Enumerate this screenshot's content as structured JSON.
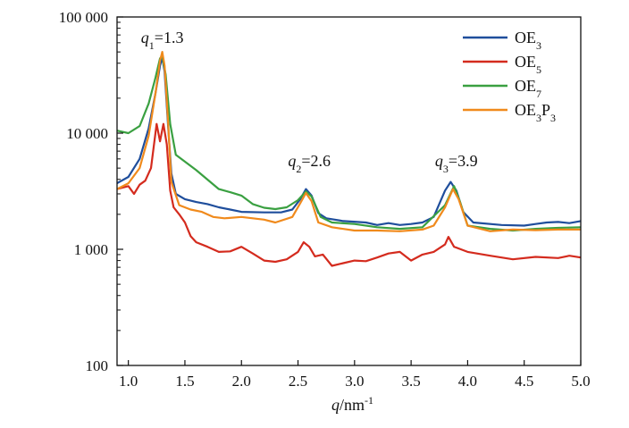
{
  "chart_data": {
    "type": "line",
    "xlabel": {
      "var": "q",
      "unit": "/nm",
      "exp": "-1"
    },
    "ylabel": "",
    "y_scale": "log",
    "xlim": [
      0.9,
      5.0
    ],
    "ylim": [
      100,
      100000
    ],
    "x_ticks": [
      1.0,
      1.5,
      2.0,
      2.5,
      3.0,
      3.5,
      4.0,
      4.5,
      5.0
    ],
    "x_tick_labels": [
      "1.0",
      "1.5",
      "2.0",
      "2.5",
      "3.0",
      "3.5",
      "4.0",
      "4.5",
      "5.0"
    ],
    "y_ticks": [
      100,
      1000,
      10000,
      100000
    ],
    "y_tick_labels": [
      "100",
      "1 000",
      "10 000",
      "100 000"
    ],
    "grid": false,
    "legend_position": "top-right",
    "annotations": [
      {
        "sym": "q",
        "sub": "1",
        "text": "=1.3",
        "x": 1.3,
        "y": 60000
      },
      {
        "sym": "q",
        "sub": "2",
        "text": "=2.6",
        "x": 2.6,
        "y": 5200
      },
      {
        "sym": "q",
        "sub": "3",
        "text": "=3.9",
        "x": 3.9,
        "y": 5200
      }
    ],
    "series": [
      {
        "name": "OE3",
        "label_main": "OE",
        "label_sub": "3",
        "color": "#1f4e9c",
        "points": [
          [
            0.9,
            3700
          ],
          [
            1.0,
            4200
          ],
          [
            1.1,
            6000
          ],
          [
            1.18,
            11000
          ],
          [
            1.24,
            22000
          ],
          [
            1.28,
            38000
          ],
          [
            1.3,
            45000
          ],
          [
            1.32,
            34000
          ],
          [
            1.35,
            12000
          ],
          [
            1.38,
            4500
          ],
          [
            1.42,
            3000
          ],
          [
            1.5,
            2700
          ],
          [
            1.6,
            2550
          ],
          [
            1.7,
            2450
          ],
          [
            1.8,
            2300
          ],
          [
            1.9,
            2200
          ],
          [
            2.0,
            2100
          ],
          [
            2.2,
            2080
          ],
          [
            2.35,
            2080
          ],
          [
            2.45,
            2200
          ],
          [
            2.52,
            2700
          ],
          [
            2.57,
            3300
          ],
          [
            2.62,
            2900
          ],
          [
            2.68,
            2050
          ],
          [
            2.75,
            1850
          ],
          [
            2.9,
            1750
          ],
          [
            3.1,
            1700
          ],
          [
            3.2,
            1620
          ],
          [
            3.3,
            1680
          ],
          [
            3.4,
            1620
          ],
          [
            3.5,
            1650
          ],
          [
            3.6,
            1700
          ],
          [
            3.7,
            1900
          ],
          [
            3.8,
            3200
          ],
          [
            3.85,
            3800
          ],
          [
            3.9,
            3200
          ],
          [
            3.96,
            2100
          ],
          [
            4.05,
            1700
          ],
          [
            4.3,
            1620
          ],
          [
            4.5,
            1600
          ],
          [
            4.6,
            1650
          ],
          [
            4.7,
            1700
          ],
          [
            4.8,
            1720
          ],
          [
            4.9,
            1680
          ],
          [
            5.0,
            1750
          ]
        ]
      },
      {
        "name": "OE5",
        "label_main": "OE",
        "label_sub": "5",
        "color": "#d42b1e",
        "points": [
          [
            0.9,
            3300
          ],
          [
            0.95,
            3400
          ],
          [
            1.0,
            3500
          ],
          [
            1.05,
            3000
          ],
          [
            1.1,
            3600
          ],
          [
            1.15,
            3900
          ],
          [
            1.2,
            5000
          ],
          [
            1.25,
            12000
          ],
          [
            1.28,
            8500
          ],
          [
            1.31,
            12000
          ],
          [
            1.34,
            8000
          ],
          [
            1.37,
            3200
          ],
          [
            1.4,
            2300
          ],
          [
            1.45,
            2000
          ],
          [
            1.5,
            1700
          ],
          [
            1.55,
            1300
          ],
          [
            1.6,
            1150
          ],
          [
            1.7,
            1050
          ],
          [
            1.8,
            950
          ],
          [
            1.9,
            960
          ],
          [
            2.0,
            1050
          ],
          [
            2.1,
            920
          ],
          [
            2.2,
            800
          ],
          [
            2.3,
            780
          ],
          [
            2.4,
            820
          ],
          [
            2.5,
            950
          ],
          [
            2.55,
            1150
          ],
          [
            2.6,
            1050
          ],
          [
            2.65,
            870
          ],
          [
            2.72,
            900
          ],
          [
            2.8,
            720
          ],
          [
            2.9,
            760
          ],
          [
            3.0,
            800
          ],
          [
            3.1,
            790
          ],
          [
            3.2,
            850
          ],
          [
            3.3,
            920
          ],
          [
            3.4,
            950
          ],
          [
            3.5,
            800
          ],
          [
            3.6,
            900
          ],
          [
            3.7,
            950
          ],
          [
            3.8,
            1100
          ],
          [
            3.83,
            1280
          ],
          [
            3.88,
            1050
          ],
          [
            4.0,
            950
          ],
          [
            4.2,
            880
          ],
          [
            4.4,
            820
          ],
          [
            4.6,
            860
          ],
          [
            4.8,
            840
          ],
          [
            4.9,
            880
          ],
          [
            5.0,
            850
          ]
        ]
      },
      {
        "name": "OE7",
        "label_main": "OE",
        "label_sub": "7",
        "color": "#3aa041",
        "points": [
          [
            0.9,
            10500
          ],
          [
            1.0,
            10000
          ],
          [
            1.1,
            11500
          ],
          [
            1.18,
            18000
          ],
          [
            1.24,
            30000
          ],
          [
            1.28,
            44000
          ],
          [
            1.3,
            46000
          ],
          [
            1.33,
            32000
          ],
          [
            1.37,
            12000
          ],
          [
            1.42,
            6500
          ],
          [
            1.6,
            4800
          ],
          [
            1.8,
            3300
          ],
          [
            1.9,
            3100
          ],
          [
            2.0,
            2900
          ],
          [
            2.1,
            2450
          ],
          [
            2.2,
            2280
          ],
          [
            2.3,
            2220
          ],
          [
            2.4,
            2300
          ],
          [
            2.5,
            2650
          ],
          [
            2.57,
            3150
          ],
          [
            2.62,
            2850
          ],
          [
            2.7,
            1900
          ],
          [
            2.8,
            1700
          ],
          [
            3.0,
            1650
          ],
          [
            3.2,
            1550
          ],
          [
            3.4,
            1500
          ],
          [
            3.6,
            1550
          ],
          [
            3.8,
            2400
          ],
          [
            3.88,
            3500
          ],
          [
            3.93,
            2600
          ],
          [
            4.0,
            1600
          ],
          [
            4.2,
            1500
          ],
          [
            4.4,
            1450
          ],
          [
            4.6,
            1500
          ],
          [
            4.8,
            1530
          ],
          [
            5.0,
            1550
          ]
        ]
      },
      {
        "name": "OE3P3",
        "label_main": "OE",
        "label_sub": "3",
        "label_mid": "P",
        "label_sub2": "3",
        "color": "#f08a1c",
        "points": [
          [
            0.9,
            3300
          ],
          [
            1.0,
            3700
          ],
          [
            1.1,
            5000
          ],
          [
            1.18,
            9500
          ],
          [
            1.24,
            22000
          ],
          [
            1.28,
            42000
          ],
          [
            1.3,
            50000
          ],
          [
            1.32,
            38000
          ],
          [
            1.35,
            13000
          ],
          [
            1.38,
            3800
          ],
          [
            1.45,
            2400
          ],
          [
            1.55,
            2200
          ],
          [
            1.65,
            2100
          ],
          [
            1.75,
            1900
          ],
          [
            1.85,
            1850
          ],
          [
            2.0,
            1900
          ],
          [
            2.2,
            1800
          ],
          [
            2.3,
            1700
          ],
          [
            2.45,
            1900
          ],
          [
            2.52,
            2500
          ],
          [
            2.57,
            3050
          ],
          [
            2.62,
            2600
          ],
          [
            2.68,
            1700
          ],
          [
            2.8,
            1550
          ],
          [
            3.0,
            1450
          ],
          [
            3.2,
            1450
          ],
          [
            3.4,
            1430
          ],
          [
            3.6,
            1480
          ],
          [
            3.7,
            1600
          ],
          [
            3.8,
            2300
          ],
          [
            3.87,
            3300
          ],
          [
            3.92,
            2700
          ],
          [
            4.0,
            1600
          ],
          [
            4.2,
            1430
          ],
          [
            4.4,
            1480
          ],
          [
            4.6,
            1460
          ],
          [
            4.8,
            1480
          ],
          [
            5.0,
            1480
          ]
        ]
      }
    ]
  }
}
